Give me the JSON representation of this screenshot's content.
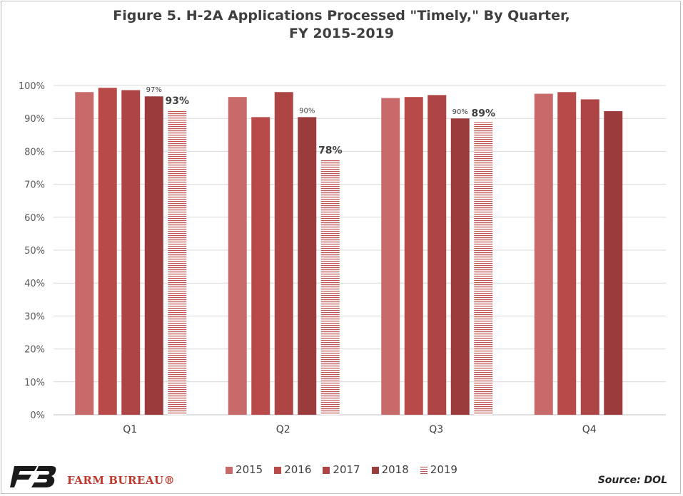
{
  "title_line1": "Figure 5. H-2A Applications Processed \"Timely,\" By Quarter,",
  "title_line2": "FY 2015-2019",
  "brand": "FARM BUREAU®",
  "source": "Source: DOL",
  "chart_data": {
    "type": "bar",
    "title": "Figure 5. H-2A Applications Processed \"Timely,\" By Quarter, FY 2015-2019",
    "categories": [
      "Q1",
      "Q2",
      "Q3",
      "Q4"
    ],
    "ylim": [
      0,
      100
    ],
    "yticks": [
      "0%",
      "10%",
      "20%",
      "30%",
      "40%",
      "50%",
      "60%",
      "70%",
      "80%",
      "90%",
      "100%"
    ],
    "grid": true,
    "legend_position": "bottom",
    "series": [
      {
        "name": "2015",
        "color": "#c8696a",
        "values": [
          98,
          96.5,
          96.2,
          97.5
        ]
      },
      {
        "name": "2016",
        "color": "#b84a4a",
        "values": [
          99.3,
          90.4,
          96.5,
          98
        ]
      },
      {
        "name": "2017",
        "color": "#ad4545",
        "values": [
          98.6,
          98,
          97.1,
          95.8
        ]
      },
      {
        "name": "2018",
        "color": "#9c3b3b",
        "values": [
          96.7,
          90.4,
          90,
          92.2
        ]
      },
      {
        "name": "2019",
        "color": "#c0504d",
        "hatched": true,
        "values": [
          92.6,
          77.6,
          88.9,
          null
        ]
      }
    ],
    "annotations": [
      {
        "series": "2018",
        "category": "Q1",
        "text": "97%",
        "bold": false
      },
      {
        "series": "2019",
        "category": "Q1",
        "text": "93%",
        "bold": true
      },
      {
        "series": "2018",
        "category": "Q2",
        "text": "90%",
        "bold": false
      },
      {
        "series": "2019",
        "category": "Q2",
        "text": "78%",
        "bold": true
      },
      {
        "series": "2018",
        "category": "Q3",
        "text": "90%",
        "bold": false
      },
      {
        "series": "2019",
        "category": "Q3",
        "text": "89%",
        "bold": true
      }
    ]
  }
}
